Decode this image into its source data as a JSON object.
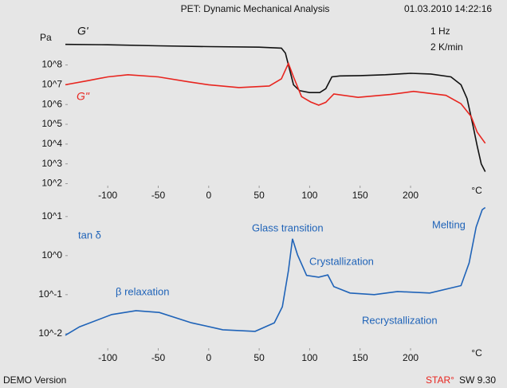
{
  "header": {
    "title": "PET: Dynamic Mechanical Analysis",
    "timestamp": "01.03.2010 14:22:16"
  },
  "chart_data": [
    {
      "type": "line",
      "yscale": "log",
      "ylabel": "Pa",
      "xlabel": "°C",
      "xlim": [
        -142,
        275
      ],
      "xticks": [
        -100,
        -50,
        0,
        50,
        100,
        150,
        200
      ],
      "ylim": [
        60,
        25000000000
      ],
      "yticks": [
        {
          "value": 100,
          "label": "10^2"
        },
        {
          "value": 1000,
          "label": "10^3"
        },
        {
          "value": 10000,
          "label": "10^4"
        },
        {
          "value": 100000,
          "label": "10^5"
        },
        {
          "value": 1000000,
          "label": "10^6"
        },
        {
          "value": 10000000,
          "label": "10^7"
        },
        {
          "value": 100000000,
          "label": "10^8"
        }
      ],
      "grid": false,
      "annotations": [
        "G'",
        "G\"",
        "1 Hz",
        "2 K/min"
      ],
      "series": [
        {
          "name": "G'",
          "color": "#111111",
          "x": [
            -142,
            -100,
            -50,
            0,
            50,
            72,
            76,
            80,
            84,
            90,
            100,
            110,
            116,
            122,
            130,
            150,
            175,
            200,
            220,
            240,
            250,
            256,
            262,
            266,
            270,
            274
          ],
          "values": [
            1100000000.0,
            1050000000.0,
            930000000.0,
            850000000.0,
            790000000.0,
            710000000.0,
            400000000.0,
            63000000.0,
            10000000.0,
            5000000.0,
            4000000.0,
            4000000.0,
            6300000.0,
            25000000.0,
            28000000.0,
            29000000.0,
            32000000.0,
            38000000.0,
            35000000.0,
            25000000.0,
            10000000.0,
            2000000.0,
            80000.0,
            8000.0,
            1000.0,
            400.0
          ]
        },
        {
          "name": "G\"",
          "color": "#e8251f",
          "x": [
            -142,
            -120,
            -100,
            -80,
            -50,
            -20,
            0,
            30,
            60,
            72,
            79,
            84,
            92,
            101,
            109,
            116,
            124,
            148,
            180,
            203,
            235,
            250,
            260,
            266,
            274
          ],
          "values": [
            10000000.0,
            16000000.0,
            25000000.0,
            32000000.0,
            25000000.0,
            14000000.0,
            10000000.0,
            7200000.0,
            8700000.0,
            20000000.0,
            120000000.0,
            25000000.0,
            2500000.0,
            1350000.0,
            930000.0,
            1300000.0,
            3400000.0,
            2300000.0,
            3200000.0,
            4600000.0,
            2900000.0,
            1100000.0,
            250000.0,
            40000.0,
            11000.0
          ]
        }
      ]
    },
    {
      "type": "line",
      "yscale": "log",
      "xlabel": "°C",
      "xlim": [
        -142,
        275
      ],
      "xticks": [
        -100,
        -50,
        0,
        50,
        100,
        150,
        200
      ],
      "ylim": [
        0.0037,
        21
      ],
      "yticks": [
        {
          "value": 0.01,
          "label": "10^-2"
        },
        {
          "value": 0.1,
          "label": "10^-1"
        },
        {
          "value": 1,
          "label": "10^0"
        },
        {
          "value": 10,
          "label": "10^1"
        }
      ],
      "grid": false,
      "annotations": [
        "tan δ",
        "β relaxation",
        "Glass transition",
        "Crystallization",
        "Recrystallization",
        "Melting"
      ],
      "series": [
        {
          "name": "tan δ",
          "color": "#1f63b8",
          "x": [
            -142,
            -128,
            -96,
            -72,
            -49,
            -17,
            14,
            46,
            65,
            73,
            79,
            83,
            88,
            97,
            109,
            118,
            124,
            140,
            164,
            187,
            219,
            250,
            258,
            265,
            271,
            274
          ],
          "values": [
            0.0091,
            0.015,
            0.031,
            0.039,
            0.035,
            0.019,
            0.0126,
            0.0115,
            0.019,
            0.049,
            0.41,
            2.7,
            1.05,
            0.31,
            0.28,
            0.32,
            0.16,
            0.11,
            0.1,
            0.12,
            0.11,
            0.17,
            0.65,
            5.4,
            15,
            17
          ]
        }
      ]
    }
  ],
  "footer": {
    "left": "DEMO Version",
    "brand": "STAR°",
    "version": "SW 9.30"
  }
}
